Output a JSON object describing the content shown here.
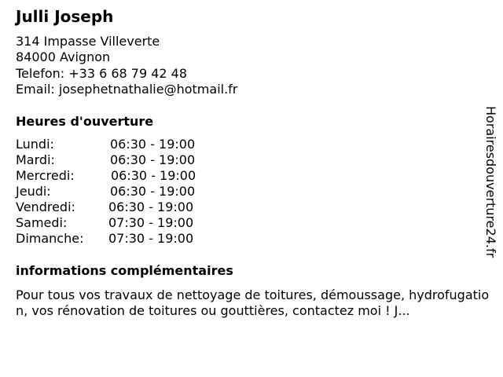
{
  "business": {
    "name": "Julli Joseph",
    "address_line1": "314 Impasse Villeverte",
    "address_line2": "84000 Avignon",
    "phone": "Telefon: +33 6 68 79 42 48",
    "email": "Email: josephetnathalie@hotmail.fr"
  },
  "hours": {
    "heading": "Heures d'ouverture",
    "rows": [
      {
        "day": "Lundi:",
        "time": "06:30 - 19:00"
      },
      {
        "day": "Mardi:",
        "time": "06:30 - 19:00"
      },
      {
        "day": "Mercredi:",
        "time": "06:30 - 19:00"
      },
      {
        "day": "Jeudi:",
        "time": "06:30 - 19:00"
      },
      {
        "day": "Vendredi:",
        "time": "06:30 - 19:00"
      },
      {
        "day": "Samedi:",
        "time": "07:30 - 19:00"
      },
      {
        "day": "Dimanche:",
        "time": "07:30 - 19:00"
      }
    ]
  },
  "info": {
    "heading": "informations complémentaires",
    "text": "Pour tous vos travaux de nettoyage de toitures, démoussage, hydrofugation, vos rénovation de toitures ou gouttières, contactez moi ! J..."
  },
  "watermark": "Horairesdouverture24.fr"
}
